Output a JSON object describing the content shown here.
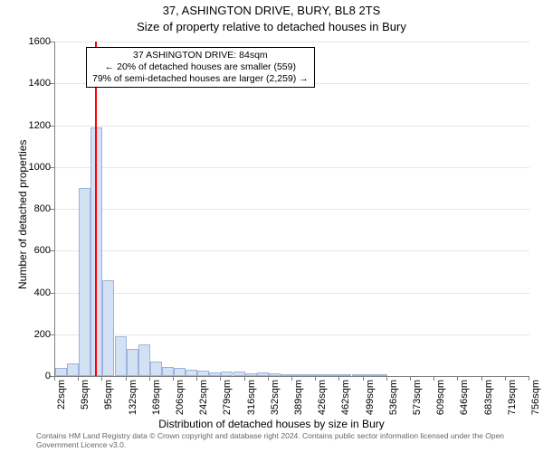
{
  "title": "37, ASHINGTON DRIVE, BURY, BL8 2TS",
  "subtitle": "Size of property relative to detached houses in Bury",
  "xlabel": "Distribution of detached houses by size in Bury",
  "ylabel": "Number of detached properties",
  "footnote": "Contains HM Land Registry data © Crown copyright and database right 2024.\nContains public sector information licensed under the Open Government Licence v3.0.",
  "chart": {
    "type": "histogram",
    "ylim": [
      0,
      1600
    ],
    "ytick_step": 200,
    "xlim": [
      22,
      756
    ],
    "reference_x": 84,
    "reference_color": "#ff0000",
    "bar_fill": "#d4e1f5",
    "bar_stroke": "#9ab4dd",
    "grid_color": "#e6e6e6",
    "axis_color": "#808080",
    "background": "#ffffff",
    "title_fontsize": 13,
    "label_fontsize": 12,
    "tick_fontsize": 11,
    "xticks": [
      "22sqm",
      "59sqm",
      "95sqm",
      "132sqm",
      "169sqm",
      "206sqm",
      "242sqm",
      "279sqm",
      "316sqm",
      "352sqm",
      "389sqm",
      "426sqm",
      "462sqm",
      "499sqm",
      "536sqm",
      "573sqm",
      "609sqm",
      "646sqm",
      "683sqm",
      "719sqm",
      "756sqm"
    ],
    "xtick_values": [
      22,
      59,
      95,
      132,
      169,
      206,
      242,
      279,
      316,
      352,
      389,
      426,
      462,
      499,
      536,
      573,
      609,
      646,
      683,
      719,
      756
    ],
    "bin_width_sqm": 18.35,
    "bins": [
      {
        "x": 22,
        "count": 40
      },
      {
        "x": 40.35,
        "count": 60
      },
      {
        "x": 58.7,
        "count": 900
      },
      {
        "x": 77.05,
        "count": 1190
      },
      {
        "x": 95.4,
        "count": 460
      },
      {
        "x": 113.75,
        "count": 190
      },
      {
        "x": 132.1,
        "count": 130
      },
      {
        "x": 150.45,
        "count": 150
      },
      {
        "x": 168.8,
        "count": 70
      },
      {
        "x": 187.15,
        "count": 45
      },
      {
        "x": 205.5,
        "count": 40
      },
      {
        "x": 223.85,
        "count": 30
      },
      {
        "x": 242.2,
        "count": 25
      },
      {
        "x": 260.55,
        "count": 18
      },
      {
        "x": 278.9,
        "count": 20
      },
      {
        "x": 297.25,
        "count": 22
      },
      {
        "x": 315.6,
        "count": 12
      },
      {
        "x": 333.95,
        "count": 18
      },
      {
        "x": 352.3,
        "count": 15
      },
      {
        "x": 370.65,
        "count": 10
      },
      {
        "x": 389.0,
        "count": 6
      },
      {
        "x": 407.35,
        "count": 4
      },
      {
        "x": 425.7,
        "count": 3
      },
      {
        "x": 444.05,
        "count": 2
      },
      {
        "x": 462.4,
        "count": 2
      },
      {
        "x": 480.75,
        "count": 1
      },
      {
        "x": 499.1,
        "count": 1
      },
      {
        "x": 517.45,
        "count": 1
      }
    ]
  },
  "annotation": {
    "line1": "37 ASHINGTON DRIVE: 84sqm",
    "line2": "← 20% of detached houses are smaller (559)",
    "line3": "79% of semi-detached houses are larger (2,259) →",
    "border_color": "#000000",
    "background": "#ffffff",
    "fontsize": 10.5
  }
}
